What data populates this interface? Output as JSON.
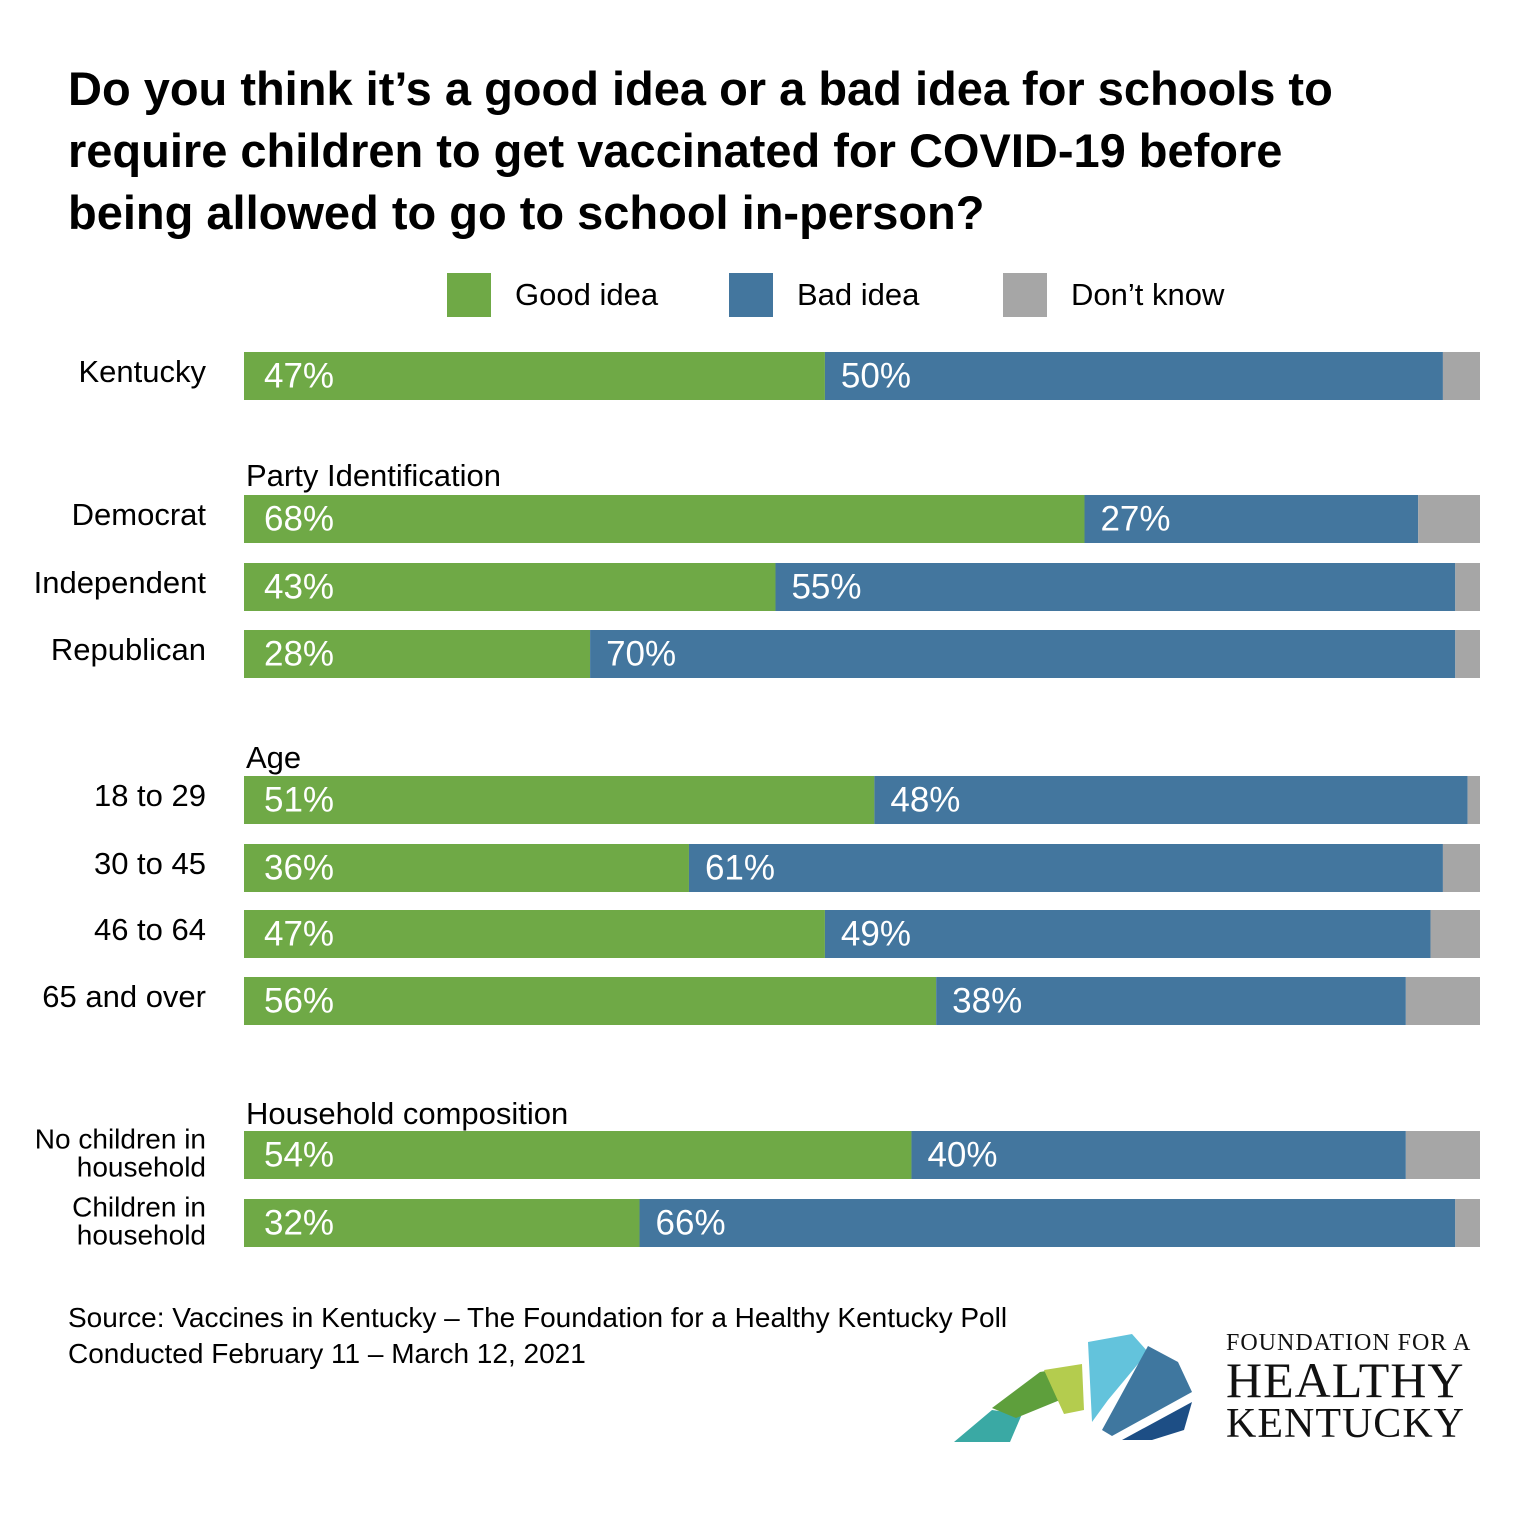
{
  "colors": {
    "good": "#6fa946",
    "bad": "#43769e",
    "dont_know": "#a6a6a6",
    "label_on_bar": "#ffffff"
  },
  "chart_data": {
    "type": "bar",
    "orientation": "horizontal",
    "stacked": true,
    "title": "Do you think it’s a good idea or a bad idea for schools to require children to get vaccinated for COVID-19 before being allowed to go to school in-person?",
    "title_lines": [
      "Do you think it’s a good idea or a bad idea for schools to",
      "require children to get vaccinated for COVID-19 before",
      "being allowed to go to school in-person?"
    ],
    "legend": [
      "Good idea",
      "Bad idea",
      "Don’t know"
    ],
    "legend_position": "top",
    "xlim": [
      0,
      100
    ],
    "groups": [
      {
        "heading": "",
        "rows": [
          {
            "label": [
              "Kentucky"
            ],
            "good": 47,
            "bad": 50,
            "dont_know": 3,
            "good_label": "47%",
            "bad_label": "50%"
          }
        ]
      },
      {
        "heading": "Party Identification",
        "rows": [
          {
            "label": [
              "Democrat"
            ],
            "good": 68,
            "bad": 27,
            "dont_know": 5,
            "good_label": "68%",
            "bad_label": "27%"
          },
          {
            "label": [
              "Independent"
            ],
            "good": 43,
            "bad": 55,
            "dont_know": 2,
            "good_label": "43%",
            "bad_label": "55%"
          },
          {
            "label": [
              "Republican"
            ],
            "good": 28,
            "bad": 70,
            "dont_know": 2,
            "good_label": "28%",
            "bad_label": "70%"
          }
        ]
      },
      {
        "heading": "Age",
        "rows": [
          {
            "label": [
              "18 to 29"
            ],
            "good": 51,
            "bad": 48,
            "dont_know": 1,
            "good_label": "51%",
            "bad_label": "48%"
          },
          {
            "label": [
              "30 to 45"
            ],
            "good": 36,
            "bad": 61,
            "dont_know": 3,
            "good_label": "36%",
            "bad_label": "61%"
          },
          {
            "label": [
              "46 to 64"
            ],
            "good": 47,
            "bad": 49,
            "dont_know": 4,
            "good_label": "47%",
            "bad_label": "49%"
          },
          {
            "label": [
              "65 and over"
            ],
            "good": 56,
            "bad": 38,
            "dont_know": 6,
            "good_label": "56%",
            "bad_label": "38%"
          }
        ]
      },
      {
        "heading": "Household composition",
        "rows": [
          {
            "label": [
              "No children in",
              "household"
            ],
            "good": 54,
            "bad": 40,
            "dont_know": 6,
            "good_label": "54%",
            "bad_label": "40%"
          },
          {
            "label": [
              "Children in",
              "household"
            ],
            "good": 32,
            "bad": 66,
            "dont_know": 2,
            "good_label": "32%",
            "bad_label": "66%"
          }
        ]
      }
    ]
  },
  "source": {
    "line1": "Source: Vaccines in Kentucky – The Foundation for a Healthy Kentucky Poll",
    "line2": "Conducted February 11 – March 12, 2021"
  },
  "logo": {
    "line1": "FOUNDATION FOR A",
    "line2": "HEALTHY",
    "line3": "KENTUCKY",
    "icon": "kentucky-map-logo-icon"
  }
}
